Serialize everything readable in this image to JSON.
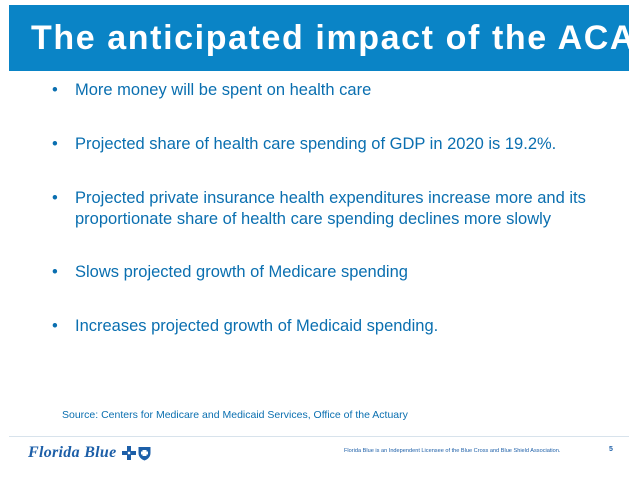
{
  "slide": {
    "title": "The anticipated impact of the ACA",
    "bullets": [
      "More money will be spent on health care",
      "Projected share of health care spending of GDP in 2020 is 19.2%.",
      "Projected private insurance health expenditures increase more and its proportionate share of health care spending declines more slowly",
      "Slows projected growth of Medicare spending",
      "Increases projected growth of Medicaid spending."
    ],
    "source": "Source: Centers for Medicare and Medicaid Services, Office of the Actuary"
  },
  "footer": {
    "logo_text": "Florida Blue",
    "logo_icons": [
      "blue-cross-icon",
      "blue-shield-icon"
    ],
    "licensee": "Florida Blue is an Independent Licensee of the Blue Cross and Blue Shield Association.",
    "page_number": "5"
  },
  "colors": {
    "title_bar": "#0a84c6",
    "body_text": "#0a6fb0",
    "logo_blue": "#1d5fa8"
  }
}
